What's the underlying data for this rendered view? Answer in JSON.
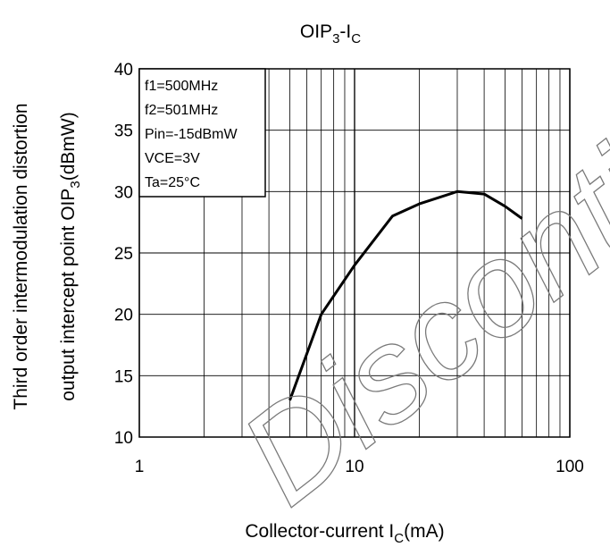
{
  "chart_data": {
    "type": "line",
    "title": {
      "main": "OIP",
      "sub": "3",
      "sep": "-I",
      "sub2": "C"
    },
    "xlabel": {
      "pre": "Collector-current I",
      "sub": "C",
      "post": "(mA)"
    },
    "ylabel": {
      "line1": "Third order intermodulation distortion",
      "line2_pre": "output intercept point OIP",
      "line2_sub": "3",
      "line2_post": "(dBmW)"
    },
    "x_scale": "log",
    "xlim": [
      1,
      100
    ],
    "ylim": [
      10,
      40
    ],
    "x_ticks": [
      "1",
      "10",
      "100"
    ],
    "y_ticks": [
      "10",
      "15",
      "20",
      "25",
      "30",
      "35",
      "40"
    ],
    "grid": true,
    "legend_box": {
      "position": "top-left",
      "lines": [
        "f1=500MHz",
        "f2=501MHz",
        "Pin=-15dBmW",
        "VCE=3V",
        "Ta=25°C"
      ]
    },
    "series": [
      {
        "color": "#000000",
        "x": [
          5,
          7,
          10,
          15,
          20,
          30,
          40,
          50,
          60
        ],
        "y": [
          13,
          20,
          24,
          28,
          29,
          30,
          29.8,
          28.8,
          27.8
        ]
      }
    ],
    "watermark": "Discontinued"
  }
}
